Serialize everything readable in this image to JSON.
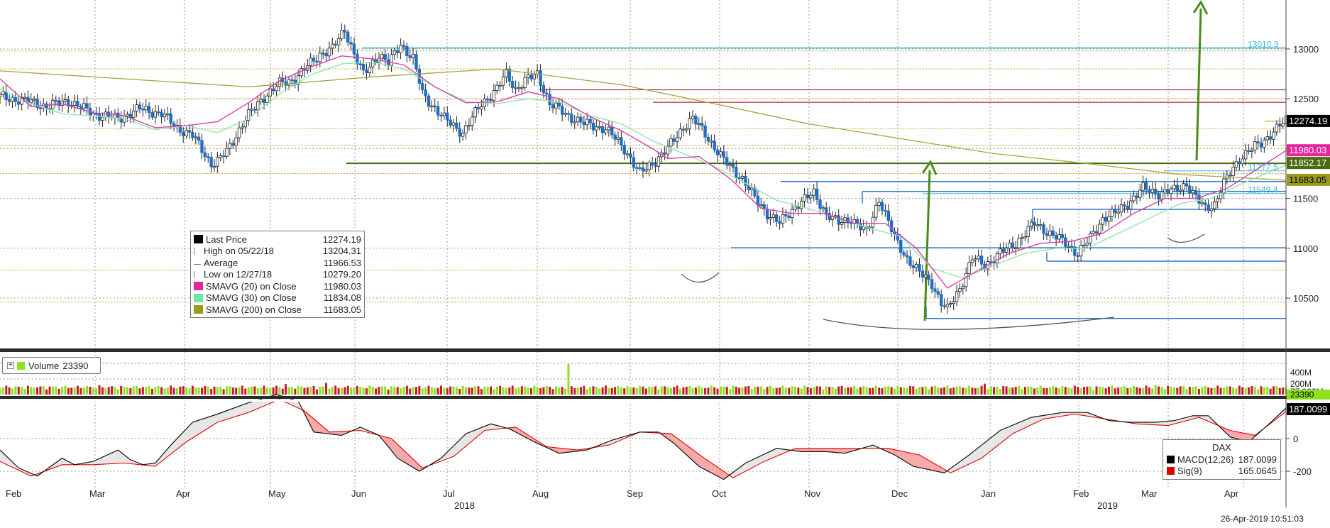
{
  "chart_data": [
    {
      "type": "candlestick",
      "instrument": "DAX",
      "y_ticks": [
        10500,
        11000,
        11500,
        12000,
        12500,
        13000
      ],
      "ylim": [
        10000,
        13450
      ],
      "months": [
        "Feb",
        "Mar",
        "Apr",
        "May",
        "Jun",
        "Jul",
        "Aug",
        "Sep",
        "Oct",
        "Nov",
        "Dec",
        "Jan",
        "Feb",
        "Mar",
        "Apr"
      ],
      "years": [
        "2018",
        "2019"
      ],
      "timestamp": "26-Apr-2019 10:51:03",
      "legend": [
        {
          "label": "Last Price",
          "value": "12274.19",
          "color": "#000000"
        },
        {
          "label": "High on 05/22/18",
          "value": "13204.31",
          "color": "#777777"
        },
        {
          "label": "Average",
          "value": "11966.53",
          "color": "#777777"
        },
        {
          "label": "Low on 12/27/18",
          "value": "10279.20",
          "color": "#777777"
        },
        {
          "label": "SMAVG (20)  on Close",
          "value": "11980.03",
          "color": "#e6249b"
        },
        {
          "label": "SMAVG (30)  on Close",
          "value": "11834.08",
          "color": "#6ee8a0"
        },
        {
          "label": "SMAVG (200)  on Close",
          "value": "11683.05",
          "color": "#9a9a1c"
        }
      ],
      "axis_tags": [
        {
          "value": "12274.19",
          "price": 12274.19,
          "bg": "#000000",
          "fg": "#ffffff"
        },
        {
          "value": "11980.03",
          "price": 11980.03,
          "bg": "#e6249b",
          "fg": "#ffffff"
        },
        {
          "value": "11852.17",
          "price": 11852.17,
          "bg": "#4b6b10",
          "fg": "#ffffff"
        },
        {
          "value": "11683.05",
          "price": 11683.05,
          "bg": "#9a9a1c",
          "fg": "#000000"
        }
      ],
      "level_labels": [
        {
          "value": "13010.3",
          "price": 13010.3
        },
        {
          "value": "11777.5",
          "price": 11777.5
        },
        {
          "value": "11549.4",
          "price": 11549.4
        }
      ],
      "levels_cyan": [
        13010,
        11777,
        11549
      ],
      "levels_red": [
        12590,
        12465
      ],
      "levels_green": [
        11852
      ],
      "levels_blue": [
        11570,
        11635,
        11390,
        11005,
        10870,
        10295
      ],
      "levels_orange": [
        12980,
        12800,
        12500,
        12200,
        12035,
        11750,
        10780,
        10460
      ],
      "close_path": [
        [
          0,
          12520
        ],
        [
          10,
          12470
        ],
        [
          15,
          12420
        ],
        [
          22,
          12480
        ],
        [
          30,
          12350
        ],
        [
          38,
          12300
        ],
        [
          45,
          12400
        ],
        [
          52,
          12350
        ],
        [
          57,
          12210
        ],
        [
          62,
          12130
        ],
        [
          68,
          11850
        ],
        [
          70,
          11870
        ],
        [
          73,
          11970
        ],
        [
          79,
          12300
        ],
        [
          85,
          12520
        ],
        [
          90,
          12650
        ],
        [
          95,
          12700
        ],
        [
          103,
          12950
        ],
        [
          107,
          13000
        ],
        [
          111,
          13200
        ],
        [
          114,
          12950
        ],
        [
          117,
          12740
        ],
        [
          122,
          12950
        ],
        [
          125,
          12850
        ],
        [
          129,
          13050
        ],
        [
          133,
          12900
        ],
        [
          136,
          12550
        ],
        [
          143,
          12300
        ],
        [
          149,
          12160
        ],
        [
          155,
          12450
        ],
        [
          160,
          12600
        ],
        [
          163,
          12750
        ],
        [
          166,
          12600
        ],
        [
          169,
          12680
        ],
        [
          173,
          12750
        ],
        [
          177,
          12450
        ],
        [
          183,
          12330
        ],
        [
          188,
          12250
        ],
        [
          195,
          12200
        ],
        [
          201,
          12000
        ],
        [
          206,
          11750
        ],
        [
          211,
          11880
        ],
        [
          215,
          12000
        ],
        [
          220,
          12220
        ],
        [
          223,
          12300
        ],
        [
          227,
          12150
        ],
        [
          233,
          11880
        ],
        [
          239,
          11700
        ],
        [
          243,
          11500
        ],
        [
          247,
          11350
        ],
        [
          251,
          11250
        ],
        [
          257,
          11450
        ],
        [
          262,
          11550
        ],
        [
          266,
          11350
        ],
        [
          270,
          11250
        ],
        [
          274,
          11300
        ],
        [
          279,
          11150
        ],
        [
          283,
          11500
        ],
        [
          288,
          11100
        ],
        [
          292,
          10900
        ],
        [
          296,
          10750
        ],
        [
          300,
          10650
        ],
        [
          303,
          10450
        ],
        [
          305,
          10380
        ],
        [
          309,
          10600
        ],
        [
          313,
          10900
        ],
        [
          317,
          10830
        ],
        [
          322,
          10950
        ],
        [
          327,
          11050
        ],
        [
          333,
          11250
        ],
        [
          338,
          11150
        ],
        [
          343,
          11050
        ],
        [
          347,
          10950
        ],
        [
          351,
          11100
        ],
        [
          355,
          11300
        ],
        [
          359,
          11350
        ],
        [
          363,
          11450
        ],
        [
          368,
          11600
        ],
        [
          373,
          11550
        ],
        [
          378,
          11580
        ],
        [
          382,
          11650
        ],
        [
          385,
          11500
        ],
        [
          388,
          11400
        ],
        [
          391,
          11450
        ],
        [
          394,
          11650
        ],
        [
          399,
          11900
        ],
        [
          402,
          11980
        ],
        [
          406,
          12050
        ],
        [
          410,
          12180
        ],
        [
          414,
          12274
        ]
      ],
      "sma20": [
        [
          0,
          12700
        ],
        [
          10,
          12420
        ],
        [
          20,
          12450
        ],
        [
          30,
          12360
        ],
        [
          40,
          12330
        ],
        [
          50,
          12210
        ],
        [
          60,
          12230
        ],
        [
          70,
          12270
        ],
        [
          80,
          12460
        ],
        [
          90,
          12680
        ],
        [
          100,
          12820
        ],
        [
          110,
          12930
        ],
        [
          120,
          12900
        ],
        [
          130,
          12840
        ],
        [
          140,
          12620
        ],
        [
          150,
          12460
        ],
        [
          160,
          12470
        ],
        [
          170,
          12570
        ],
        [
          180,
          12500
        ],
        [
          190,
          12320
        ],
        [
          200,
          12180
        ],
        [
          210,
          12000
        ],
        [
          215,
          11900
        ],
        [
          225,
          11920
        ],
        [
          235,
          11700
        ],
        [
          245,
          11400
        ],
        [
          255,
          11350
        ],
        [
          265,
          11350
        ],
        [
          275,
          11250
        ],
        [
          285,
          11250
        ],
        [
          295,
          11000
        ],
        [
          305,
          10600
        ],
        [
          315,
          10780
        ],
        [
          325,
          10950
        ],
        [
          335,
          11050
        ],
        [
          345,
          11070
        ],
        [
          355,
          11150
        ],
        [
          365,
          11350
        ],
        [
          375,
          11500
        ],
        [
          385,
          11500
        ],
        [
          395,
          11600
        ],
        [
          405,
          11800
        ],
        [
          414,
          11980
        ]
      ],
      "sma30": [
        [
          0,
          12600
        ],
        [
          10,
          12450
        ],
        [
          20,
          12350
        ],
        [
          30,
          12330
        ],
        [
          40,
          12300
        ],
        [
          50,
          12190
        ],
        [
          60,
          12230
        ],
        [
          70,
          12160
        ],
        [
          80,
          12300
        ],
        [
          90,
          12550
        ],
        [
          100,
          12740
        ],
        [
          110,
          12850
        ],
        [
          120,
          12870
        ],
        [
          130,
          12800
        ],
        [
          140,
          12620
        ],
        [
          150,
          12470
        ],
        [
          160,
          12450
        ],
        [
          170,
          12500
        ],
        [
          180,
          12470
        ],
        [
          190,
          12330
        ],
        [
          200,
          12250
        ],
        [
          210,
          12080
        ],
        [
          220,
          11950
        ],
        [
          230,
          11820
        ],
        [
          240,
          11650
        ],
        [
          250,
          11480
        ],
        [
          260,
          11400
        ],
        [
          270,
          11300
        ],
        [
          280,
          11200
        ],
        [
          290,
          11120
        ],
        [
          300,
          10800
        ],
        [
          310,
          10700
        ],
        [
          320,
          10830
        ],
        [
          330,
          10950
        ],
        [
          340,
          11000
        ],
        [
          350,
          11000
        ],
        [
          360,
          11150
        ],
        [
          370,
          11300
        ],
        [
          380,
          11450
        ],
        [
          390,
          11500
        ],
        [
          400,
          11650
        ],
        [
          414,
          11834
        ]
      ],
      "sma200": [
        [
          0,
          12780
        ],
        [
          40,
          12700
        ],
        [
          80,
          12620
        ],
        [
          120,
          12720
        ],
        [
          160,
          12800
        ],
        [
          200,
          12640
        ],
        [
          230,
          12450
        ],
        [
          260,
          12250
        ],
        [
          290,
          12100
        ],
        [
          320,
          11950
        ],
        [
          350,
          11850
        ],
        [
          380,
          11740
        ],
        [
          414,
          11683
        ]
      ],
      "volume": {
        "label": "Volume",
        "value": "23390",
        "ticks": [
          "400M",
          "200M",
          "77.902M"
        ],
        "tag": "23390"
      },
      "macd": {
        "title": "DAX",
        "ticks": [
          "0",
          "-200"
        ],
        "legend": [
          {
            "label": "MACD(12,26)",
            "value": "187.0099",
            "color": "#000000"
          },
          {
            "label": "Sig(9)",
            "value": "165.0645",
            "color": "#e00000"
          }
        ],
        "tag": "187.0099",
        "macd_line": [
          [
            0,
            -70
          ],
          [
            6,
            -180
          ],
          [
            12,
            -230
          ],
          [
            20,
            -120
          ],
          [
            24,
            -160
          ],
          [
            30,
            -140
          ],
          [
            38,
            -70
          ],
          [
            42,
            -130
          ],
          [
            46,
            -160
          ],
          [
            50,
            -150
          ],
          [
            55,
            -40
          ],
          [
            62,
            100
          ],
          [
            70,
            150
          ],
          [
            80,
            220
          ],
          [
            89,
            270
          ],
          [
            96,
            230
          ],
          [
            101,
            40
          ],
          [
            110,
            20
          ],
          [
            116,
            70
          ],
          [
            122,
            20
          ],
          [
            128,
            -120
          ],
          [
            135,
            -200
          ],
          [
            142,
            -120
          ],
          [
            150,
            30
          ],
          [
            158,
            90
          ],
          [
            164,
            60
          ],
          [
            172,
            -20
          ],
          [
            180,
            -90
          ],
          [
            189,
            -70
          ],
          [
            197,
            -10
          ],
          [
            206,
            40
          ],
          [
            212,
            40
          ],
          [
            217,
            -30
          ],
          [
            225,
            -170
          ],
          [
            233,
            -250
          ],
          [
            240,
            -150
          ],
          [
            250,
            -60
          ],
          [
            258,
            -80
          ],
          [
            266,
            -80
          ],
          [
            272,
            -90
          ],
          [
            281,
            -40
          ],
          [
            288,
            -100
          ],
          [
            294,
            -170
          ],
          [
            304,
            -210
          ],
          [
            312,
            -100
          ],
          [
            322,
            50
          ],
          [
            332,
            130
          ],
          [
            342,
            160
          ],
          [
            350,
            160
          ],
          [
            357,
            110
          ],
          [
            364,
            100
          ],
          [
            372,
            100
          ],
          [
            378,
            110
          ],
          [
            384,
            140
          ],
          [
            389,
            140
          ],
          [
            396,
            10
          ],
          [
            402,
            -20
          ],
          [
            408,
            80
          ],
          [
            414,
            187
          ]
        ],
        "sig_line": [
          [
            0,
            -140
          ],
          [
            10,
            -230
          ],
          [
            20,
            -160
          ],
          [
            30,
            -160
          ],
          [
            40,
            -150
          ],
          [
            50,
            -170
          ],
          [
            60,
            -20
          ],
          [
            70,
            100
          ],
          [
            80,
            160
          ],
          [
            90,
            240
          ],
          [
            98,
            170
          ],
          [
            106,
            40
          ],
          [
            116,
            50
          ],
          [
            126,
            0
          ],
          [
            136,
            -180
          ],
          [
            146,
            -110
          ],
          [
            156,
            50
          ],
          [
            166,
            70
          ],
          [
            176,
            -50
          ],
          [
            186,
            -70
          ],
          [
            196,
            -40
          ],
          [
            206,
            40
          ],
          [
            216,
            30
          ],
          [
            226,
            -110
          ],
          [
            236,
            -240
          ],
          [
            246,
            -140
          ],
          [
            256,
            -60
          ],
          [
            266,
            -60
          ],
          [
            276,
            -60
          ],
          [
            286,
            -60
          ],
          [
            296,
            -100
          ],
          [
            306,
            -210
          ],
          [
            316,
            -120
          ],
          [
            326,
            30
          ],
          [
            336,
            120
          ],
          [
            346,
            150
          ],
          [
            356,
            120
          ],
          [
            366,
            90
          ],
          [
            376,
            80
          ],
          [
            386,
            130
          ],
          [
            396,
            50
          ],
          [
            404,
            20
          ],
          [
            414,
            165
          ]
        ]
      }
    }
  ]
}
